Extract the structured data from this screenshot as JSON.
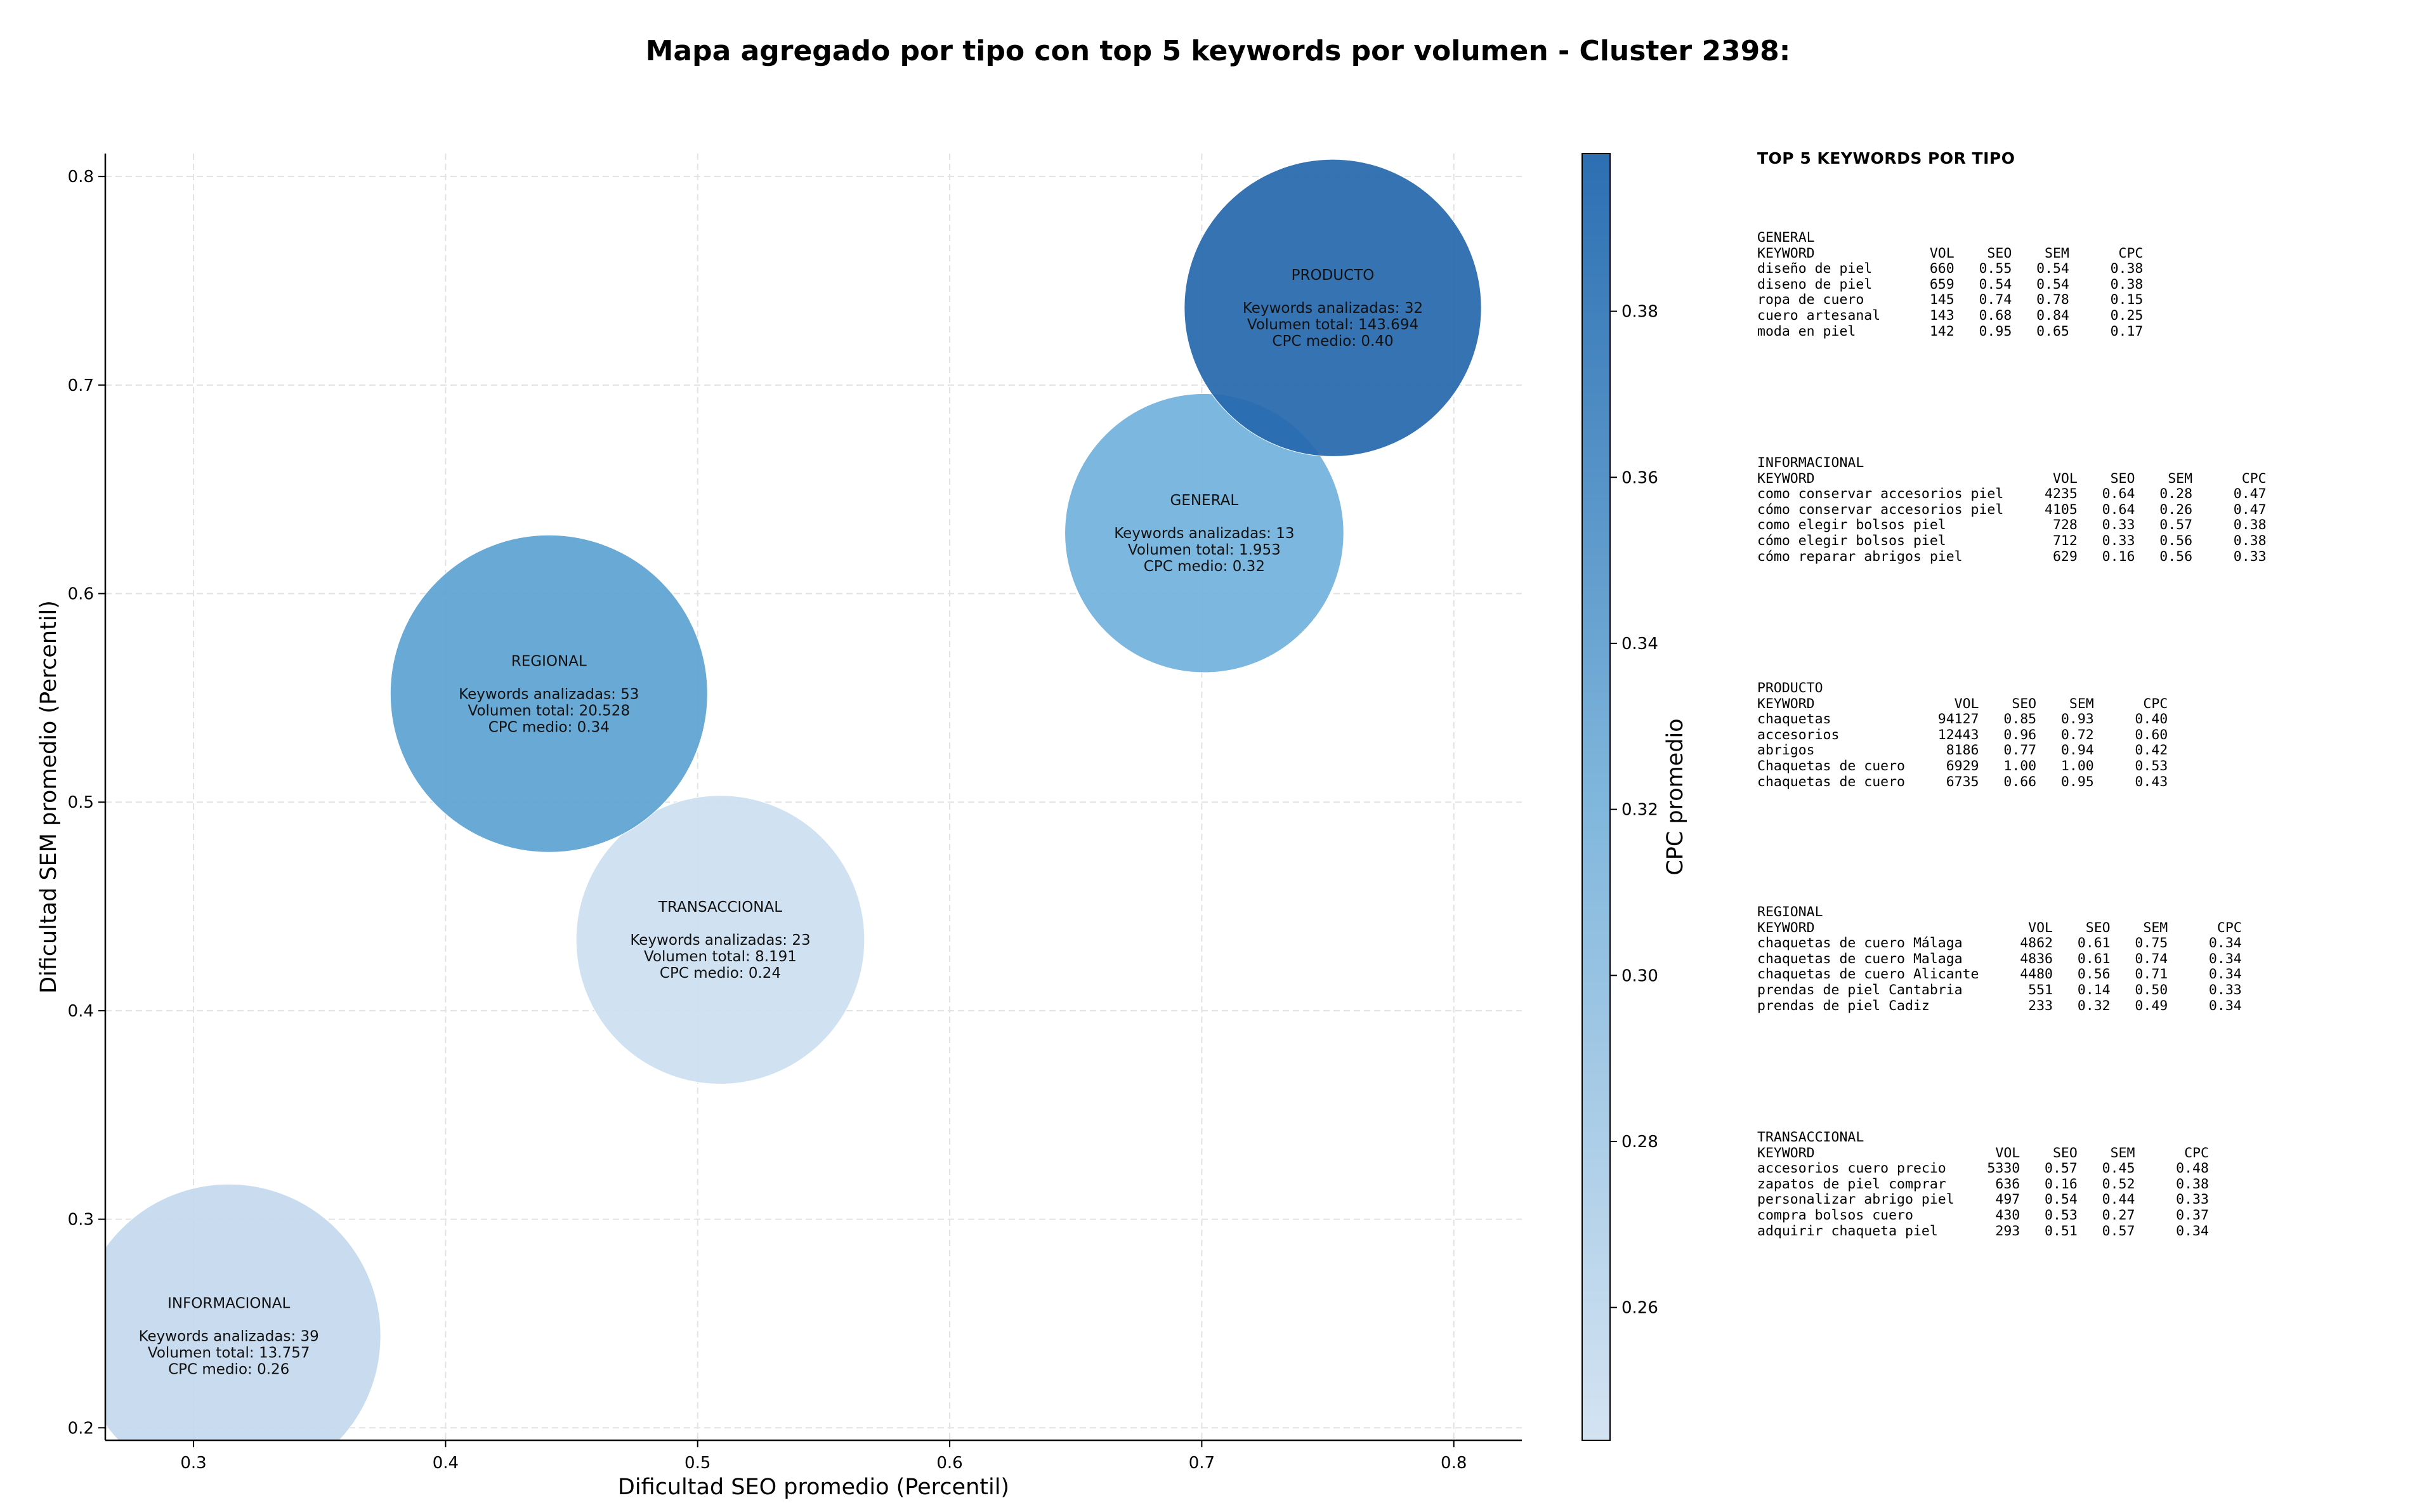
{
  "title": "Mapa agregado por tipo con top 5 keywords por volumen - Cluster 2398:",
  "chart_data": {
    "type": "scatter",
    "xlabel": "Dificultad SEO promedio (Percentil)",
    "ylabel": "Dificultad SEM promedio (Percentil)",
    "xlim": [
      0.265,
      0.827
    ],
    "ylim": [
      0.194,
      0.811
    ],
    "xticks": [
      "0.3",
      "0.4",
      "0.5",
      "0.6",
      "0.7",
      "0.8"
    ],
    "yticks": [
      "0.2",
      "0.3",
      "0.4",
      "0.5",
      "0.6",
      "0.7",
      "0.8"
    ],
    "grid": true,
    "colorbar": {
      "label": "CPC promedio",
      "range": [
        0.244,
        0.399
      ],
      "ticks": [
        "0.26",
        "0.28",
        "0.30",
        "0.32",
        "0.34",
        "0.36",
        "0.38"
      ],
      "color_low": "#d4e3f2",
      "color_high": "#2c6fb2"
    },
    "points": [
      {
        "type": "INFORMACIONAL",
        "x": 0.314,
        "y": 0.244,
        "cpc": 0.26,
        "keywords_label": "Keywords analizadas: 39",
        "volume_label": "Volumen total: 13.757",
        "cpc_label": "CPC medio: 0.26",
        "color": "#c4d9ee"
      },
      {
        "type": "TRANSACCIONAL",
        "x": 0.509,
        "y": 0.434,
        "cpc": 0.24,
        "keywords_label": "Keywords analizadas: 23",
        "volume_label": "Volumen total: 8.191",
        "cpc_label": "CPC medio: 0.24",
        "color": "#ccdff1"
      },
      {
        "type": "REGIONAL",
        "x": 0.441,
        "y": 0.552,
        "cpc": 0.34,
        "keywords_label": "Keywords analizadas: 53",
        "volume_label": "Volumen total: 20.528",
        "cpc_label": "CPC medio: 0.34",
        "color": "#5ba2d1"
      },
      {
        "type": "GENERAL",
        "x": 0.701,
        "y": 0.629,
        "cpc": 0.32,
        "keywords_label": "Keywords analizadas: 13",
        "volume_label": "Volumen total: 1.953",
        "cpc_label": "CPC medio: 0.32",
        "color": "#70b1db"
      },
      {
        "type": "PRODUCTO",
        "x": 0.752,
        "y": 0.737,
        "cpc": 0.4,
        "keywords_label": "Keywords analizadas: 32",
        "volume_label": "Volumen total: 143.694",
        "cpc_label": "CPC medio: 0.40",
        "color": "#2467ad"
      }
    ]
  },
  "keyword_panel": {
    "title": "TOP 5 KEYWORDS POR TIPO",
    "groups": [
      {
        "name": "GENERAL",
        "header": "KEYWORD              VOL    SEO    SEM      CPC",
        "rows": [
          "diseño de piel       660   0.55   0.54     0.38",
          "diseno de piel       659   0.54   0.54     0.38",
          "ropa de cuero        145   0.74   0.78     0.15",
          "cuero artesanal      143   0.68   0.84     0.25",
          "moda en piel         142   0.95   0.65     0.17"
        ]
      },
      {
        "name": "INFORMACIONAL",
        "header": "KEYWORD                             VOL    SEO    SEM      CPC",
        "rows": [
          "como conservar accesorios piel     4235   0.64   0.28     0.47",
          "cómo conservar accesorios piel     4105   0.64   0.26     0.47",
          "como elegir bolsos piel             728   0.33   0.57     0.38",
          "cómo elegir bolsos piel             712   0.33   0.56     0.38",
          "cómo reparar abrigos piel           629   0.16   0.56     0.33"
        ]
      },
      {
        "name": "PRODUCTO",
        "header": "KEYWORD                 VOL    SEO    SEM      CPC",
        "rows": [
          "chaquetas             94127   0.85   0.93     0.40",
          "accesorios            12443   0.96   0.72     0.60",
          "abrigos                8186   0.77   0.94     0.42",
          "Chaquetas de cuero     6929   1.00   1.00     0.53",
          "chaquetas de cuero     6735   0.66   0.95     0.43"
        ]
      },
      {
        "name": "REGIONAL",
        "header": "KEYWORD                          VOL    SEO    SEM      CPC",
        "rows": [
          "chaquetas de cuero Málaga       4862   0.61   0.75     0.34",
          "chaquetas de cuero Malaga       4836   0.61   0.74     0.34",
          "chaquetas de cuero Alicante     4480   0.56   0.71     0.34",
          "prendas de piel Cantabria        551   0.14   0.50     0.33",
          "prendas de piel Cadiz            233   0.32   0.49     0.34"
        ]
      },
      {
        "name": "TRANSACCIONAL",
        "header": "KEYWORD                      VOL    SEO    SEM      CPC",
        "rows": [
          "accesorios cuero precio     5330   0.57   0.45     0.48",
          "zapatos de piel comprar      636   0.16   0.52     0.38",
          "personalizar abrigo piel     497   0.54   0.44     0.33",
          "compra bolsos cuero          430   0.53   0.27     0.37",
          "adquirir chaqueta piel       293   0.51   0.57     0.34"
        ]
      }
    ]
  }
}
